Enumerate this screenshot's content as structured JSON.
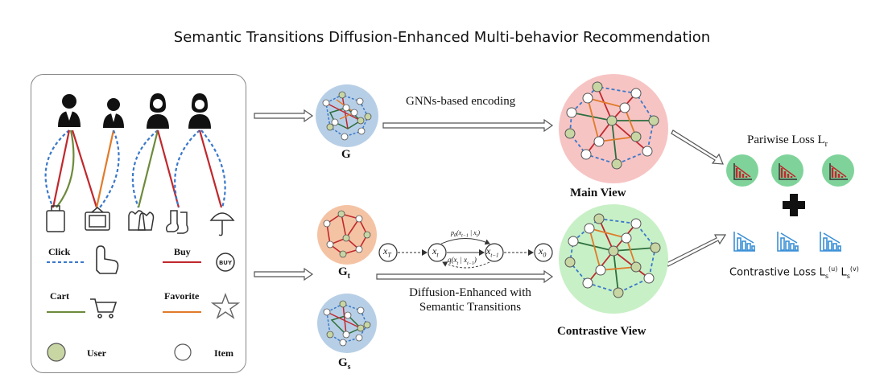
{
  "title": "Semantic Transitions Diffusion-Enhanced Multi-behavior Recommendation",
  "legend": {
    "click": "Click",
    "buy": "Buy",
    "cart": "Cart",
    "favorite": "Favorite",
    "user": "User",
    "item": "Item",
    "buy_badge": "BUY"
  },
  "graphs": {
    "g": "G",
    "gt": "G",
    "gt_sub": "t",
    "gs": "G",
    "gs_sub": "s"
  },
  "arrows": {
    "encoding": "GNNs-based encoding",
    "diffusion_line1": "Diffusion-Enhanced with",
    "diffusion_line2": "Semantic Transitions"
  },
  "views": {
    "main": "Main View",
    "contrastive": "Contrastive View"
  },
  "diffusion_chain": {
    "xT": "x",
    "xT_sub": "T",
    "xt": "x",
    "xt_sub": "t",
    "xt1": "x",
    "xt1_sub": "t−1",
    "x0": "x",
    "x0_sub": "0",
    "p_label": "p",
    "p_label_rest": "(x",
    "p_label_sub": "t−1",
    "p_label_end": " | x",
    "p_label_end_sub": "t",
    "p_label_close": ")",
    "p_label_param": "θ",
    "q_label": "q(x",
    "q_label_sub1": "t",
    "q_label_mid": " | x",
    "q_label_sub2": "t−1",
    "q_label_close": ")"
  },
  "losses": {
    "pairwise": "Pariwise Loss L",
    "pairwise_sub": "r",
    "contrastive": "Contrastive Loss L",
    "contrastive_sub1": "s",
    "contrastive_sup1": "(u)",
    "contrastive_mid": " L",
    "contrastive_sub2": "s",
    "contrastive_sup2": "(v)"
  },
  "colors": {
    "click": "#3a78c9",
    "buy": "#c0282d",
    "cart": "#6d8a3c",
    "favorite": "#e07b2a",
    "user_node": "#c8d6a4",
    "main_view_bg": "#f7c4c4",
    "contrastive_view_bg": "#c8f0c6",
    "g_bg": "#b7cfe6",
    "gt_bg": "#f4c3a4",
    "loss_green": "#7fd39a",
    "loss_blue": "#3a8fd6"
  }
}
